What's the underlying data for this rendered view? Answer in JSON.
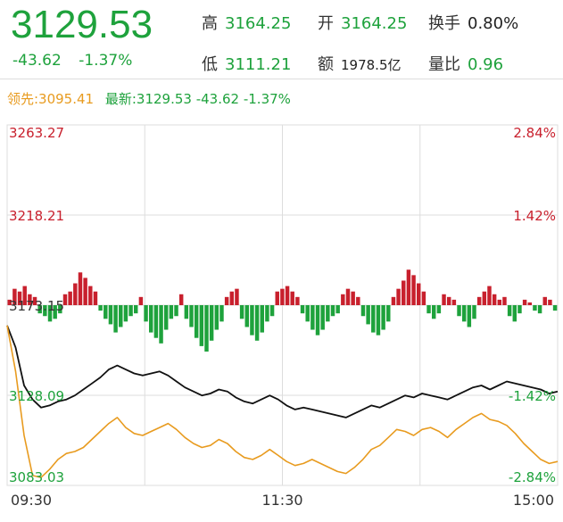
{
  "header": {
    "price": "3129.53",
    "change": "-43.62",
    "change_pct": "-1.37%",
    "high_label": "高",
    "high_value": "3164.25",
    "open_label": "开",
    "open_value": "3164.25",
    "turnover_label": "换手",
    "turnover_value": "0.80%",
    "low_label": "低",
    "low_value": "3111.21",
    "amount_label": "额",
    "amount_value": "1978.5亿",
    "volume_ratio_label": "量比",
    "volume_ratio_value": "0.96"
  },
  "info_row": {
    "lead_text": "领先:3095.41",
    "latest_text": "最新:3129.53 -43.62 -1.37%"
  },
  "colors": {
    "down_green": "#1ea23c",
    "up_red": "#c8202d",
    "lead_orange": "#e89b1f",
    "price_line": "#111111",
    "grid": "#dddddd"
  },
  "chart_data": {
    "type": "line",
    "x_tick_labels": [
      "09:30",
      "11:30",
      "15:00"
    ],
    "y_left_labels": [
      "3263.27",
      "3218.21",
      "3173.15",
      "3128.09",
      "3083.03"
    ],
    "y_right_labels": [
      "2.84%",
      "1.42%",
      "",
      "-1.42%",
      "-2.84%"
    ],
    "ylim": [
      3083.03,
      3263.27
    ],
    "prev_close": 3173.15,
    "series": [
      {
        "name": "最新",
        "color": "#111111",
        "values": [
          3163,
          3152,
          3133,
          3126,
          3122,
          3123,
          3125,
          3126,
          3128,
          3131,
          3134,
          3137,
          3141,
          3143,
          3141,
          3139,
          3138,
          3139,
          3140,
          3138,
          3135,
          3132,
          3130,
          3128,
          3129,
          3131,
          3130,
          3127,
          3125,
          3124,
          3126,
          3128,
          3126,
          3123,
          3121,
          3122,
          3121,
          3120,
          3119,
          3118,
          3117,
          3119,
          3121,
          3123,
          3122,
          3124,
          3126,
          3128,
          3127,
          3129,
          3128,
          3127,
          3126,
          3128,
          3130,
          3132,
          3133,
          3131,
          3133,
          3135,
          3134,
          3133,
          3132,
          3131,
          3129,
          3130
        ]
      },
      {
        "name": "领先",
        "color": "#e89b1f",
        "values": [
          3163,
          3140,
          3108,
          3088,
          3087,
          3091,
          3096,
          3099,
          3100,
          3102,
          3106,
          3110,
          3114,
          3117,
          3112,
          3109,
          3108,
          3110,
          3112,
          3114,
          3111,
          3107,
          3104,
          3102,
          3103,
          3106,
          3104,
          3100,
          3097,
          3096,
          3098,
          3101,
          3098,
          3095,
          3093,
          3094,
          3096,
          3094,
          3092,
          3090,
          3089,
          3092,
          3096,
          3101,
          3103,
          3107,
          3111,
          3110,
          3108,
          3111,
          3112,
          3110,
          3107,
          3111,
          3114,
          3117,
          3119,
          3116,
          3115,
          3113,
          3109,
          3104,
          3100,
          3096,
          3094,
          3095
        ]
      }
    ],
    "volume_bars": [
      2,
      6,
      5,
      7,
      4,
      3,
      -3,
      -4,
      -6,
      -5,
      -3,
      4,
      5,
      8,
      12,
      10,
      7,
      5,
      -2,
      -5,
      -7,
      -10,
      -8,
      -6,
      -4,
      -3,
      3,
      -6,
      -10,
      -12,
      -14,
      -9,
      -5,
      -4,
      4,
      -5,
      -8,
      -12,
      -15,
      -17,
      -13,
      -9,
      -6,
      3,
      5,
      6,
      -5,
      -8,
      -11,
      -13,
      -10,
      -6,
      -4,
      5,
      6,
      7,
      5,
      3,
      -3,
      -6,
      -9,
      -11,
      -9,
      -6,
      -4,
      -3,
      4,
      6,
      5,
      3,
      -4,
      -7,
      -10,
      -11,
      -9,
      -6,
      3,
      6,
      9,
      13,
      11,
      8,
      5,
      -3,
      -5,
      -3,
      4,
      3,
      2,
      -4,
      -6,
      -8,
      -5,
      3,
      5,
      7,
      4,
      2,
      3,
      -4,
      -6,
      -3,
      2,
      1,
      -2,
      -3,
      3,
      2,
      -2
    ]
  }
}
